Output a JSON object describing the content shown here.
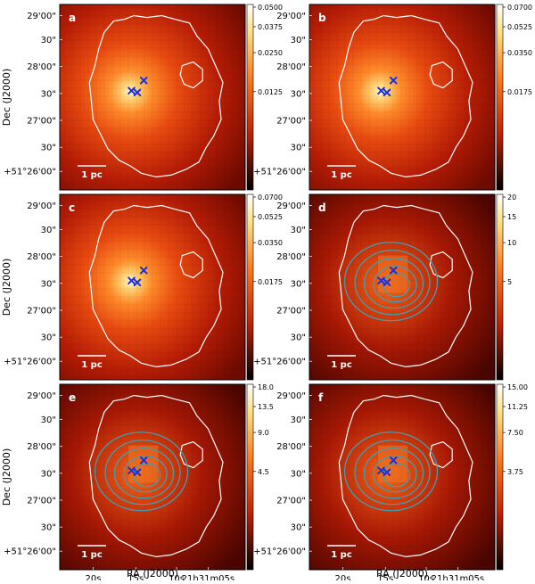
{
  "y_ticks": [
    "29'00\"",
    "30\"",
    "28'00\"",
    "30\"",
    "27'00\"",
    "30\"",
    "+51°26'00\""
  ],
  "x_ticks": [
    "20s",
    "15s",
    "10s",
    "21h31m05s"
  ],
  "ylabel": "Dec (J2000)",
  "xlabel": "RA (J2000)",
  "scalebar_label": "1 pc",
  "panels": [
    {
      "label": "a",
      "cbar": [
        "0.0500",
        "0.0375",
        "0.0250",
        "0.0125"
      ],
      "contours": false
    },
    {
      "label": "b",
      "cbar": [
        "0.0700",
        "0.0525",
        "0.0350",
        "0.0175"
      ],
      "contours": false
    },
    {
      "label": "c",
      "cbar": [
        "0.0700",
        "0.0525",
        "0.0350",
        "0.0175"
      ],
      "contours": false
    },
    {
      "label": "d",
      "cbar": [
        "20",
        "15",
        "10",
        "5"
      ],
      "contours": true
    },
    {
      "label": "e",
      "cbar": [
        "18.0",
        "13.5",
        "9.0",
        "4.5"
      ],
      "contours": true
    },
    {
      "label": "f",
      "cbar": [
        "15.00",
        "11.25",
        "7.50",
        "3.75"
      ],
      "contours": true
    }
  ]
}
